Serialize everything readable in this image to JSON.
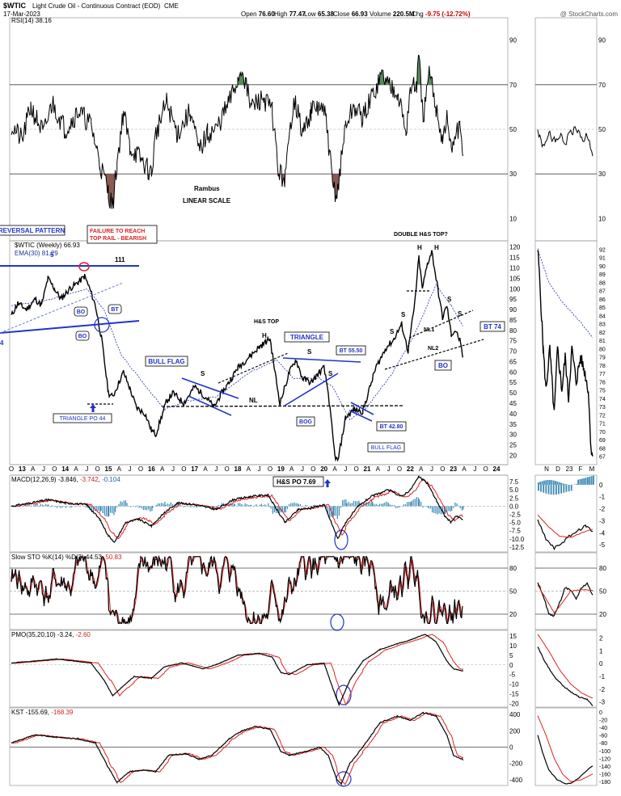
{
  "header": {
    "symbol": "$WTIC",
    "name": "Light Crude Oil - Continuous Contract (EOD)",
    "exchange": "CME",
    "date": "17-Mar-2023",
    "stats": [
      {
        "label": "Open",
        "value": "76.60"
      },
      {
        "label": "High",
        "value": "77.47"
      },
      {
        "label": "Low",
        "value": "65.38"
      },
      {
        "label": "Close",
        "value": "66.93"
      },
      {
        "label": "Volume",
        "value": "220.5M"
      },
      {
        "label": "Chg",
        "value": "-9.75 (-12.72%)"
      }
    ],
    "credit": "@ StockCharts.com"
  },
  "panels": {
    "rsi": {
      "label": "RSI(14) 38.16",
      "ticks": [
        "90",
        "70",
        "50",
        "30",
        "10"
      ],
      "levels": [
        30,
        50,
        70
      ]
    },
    "price": {
      "legend_main": "$WTIC (Weekly) 66.93",
      "legend_ema": "EMA(30) 81.29",
      "ticks": [
        "120",
        "115",
        "110",
        "105",
        "100",
        "95",
        "90",
        "85",
        "80",
        "75",
        "70",
        "65",
        "60",
        "55",
        "50",
        "45",
        "40",
        "35",
        "30",
        "25",
        "20"
      ],
      "right_ticks": [
        "92",
        "91",
        "90",
        "89",
        "88",
        "87",
        "86",
        "85",
        "84",
        "83",
        "82",
        "81",
        "80",
        "79",
        "78",
        "77",
        "76",
        "75",
        "74",
        "73",
        "72",
        "71",
        "70",
        "69",
        "68",
        "67"
      ]
    },
    "macd": {
      "label_prefix": "MACD(12,26,9)",
      "v1": "-3.846",
      "v2": "-3.742",
      "v3": "-0.104",
      "ticks": [
        "7.5",
        "5.0",
        "2.5",
        "0.0",
        "-2.5",
        "-5.0",
        "-7.5",
        "-10.0",
        "-12.5"
      ],
      "right_ticks": [
        "0",
        "-1",
        "-2",
        "-3",
        "-4",
        "-5"
      ]
    },
    "sto": {
      "label_prefix": "Slow STO %K(14) %D(3)",
      "v1": "44.53",
      "v2": "50.83",
      "ticks": [
        "80",
        "50",
        "20"
      ]
    },
    "pmo": {
      "label_prefix": "PMO(35,20,10)",
      "v1": "-3.24",
      "v2": "-2.60",
      "ticks": [
        "15",
        "10",
        "5",
        "0",
        "-5",
        "-10",
        "-15",
        "-20"
      ],
      "right_ticks": [
        "2",
        "1",
        "0",
        "-1",
        "-2",
        "-3"
      ]
    },
    "kst": {
      "label_prefix": "KST",
      "v1": "-155.69",
      "v2": "-168.39",
      "ticks": [
        "400",
        "200",
        "0",
        "-200",
        "-400"
      ],
      "right_ticks": [
        "0",
        "-20",
        "-40",
        "-60",
        "-80",
        "-100",
        "-120",
        "-140",
        "-160",
        "-180"
      ]
    }
  },
  "axis": {
    "main_labels": [
      "O",
      "13",
      "A",
      "J",
      "O",
      "14",
      "A",
      "J",
      "O",
      "15",
      "A",
      "J",
      "O",
      "16",
      "A",
      "J",
      "O",
      "17",
      "A",
      "J",
      "O",
      "18",
      "A",
      "J",
      "O",
      "19",
      "A",
      "J",
      "O",
      "20",
      "A",
      "J",
      "O",
      "21",
      "A",
      "J",
      "O",
      "22",
      "A",
      "J",
      "O",
      "23",
      "A",
      "J",
      "O",
      "24"
    ],
    "side_labels": [
      "N",
      "D",
      "23",
      "F",
      "M"
    ]
  },
  "annotations": {
    "reversal": "REVERSAL PATTERN",
    "failure1": "FAILURE TO REACH",
    "failure2": "TOP RAIL - BEARISH",
    "five": "5",
    "one11": "111",
    "four": "4",
    "bo1": "BO",
    "bo2": "BO",
    "bt": "BT",
    "triangle_po": "TRIANGLE PO 44",
    "bull_flag": "BULL FLAG",
    "s1": "S",
    "hs_top": "H&S TOP",
    "h1": "H",
    "s2": "S",
    "triangle": "TRIANGLE",
    "s3": "S",
    "bt5550": "BT 55.50",
    "nl": "NL",
    "bog": "BOG",
    "bt4280": "BT 42.80",
    "bull_flag2": "BULL FLAG",
    "double_hs": "DOUBLE H&S TOP?",
    "h2": "H",
    "h3": "H",
    "s4": "S",
    "s5": "S",
    "s6": "S",
    "s7": "S",
    "nl1": "NL1",
    "nl2": "NL2",
    "bt74": "BT 74",
    "bo3": "BO",
    "rambus": "Rambus",
    "linear": "LINEAR SCALE",
    "hs_po": "H&S PO 7.69"
  },
  "chart_data": {
    "type": "line",
    "title": "$WTIC Light Crude Oil - Continuous Contract (EOD)",
    "x_range": [
      "2012-10",
      "2024-01"
    ],
    "series": [
      {
        "name": "$WTIC (Weekly)",
        "x": [
          "2012-10",
          "2013-06",
          "2014-06",
          "2014-12",
          "2015-05",
          "2016-02",
          "2016-06",
          "2017-06",
          "2018-10",
          "2018-12",
          "2019-04",
          "2019-12",
          "2020-04",
          "2020-08",
          "2021-06",
          "2022-03",
          "2022-06",
          "2022-09",
          "2022-11",
          "2023-01",
          "2023-03"
        ],
        "values": [
          88,
          97,
          106,
          58,
          61,
          30,
          50,
          43,
          76,
          45,
          66,
          62,
          18,
          42,
          72,
          116,
          116,
          79,
          92,
          77,
          67
        ]
      },
      {
        "name": "EMA(30)",
        "x": [
          "2013-01",
          "2014-06",
          "2015-06",
          "2016-06",
          "2018-10",
          "2019-06",
          "2020-06",
          "2021-06",
          "2022-06",
          "2023-03"
        ],
        "values": [
          92,
          100,
          64,
          40,
          66,
          58,
          38,
          62,
          102,
          81
        ]
      }
    ],
    "ylim": [
      18,
      122
    ],
    "rsi_levels": [
      30,
      50,
      70
    ],
    "rsi_last": 38.16,
    "macd_last": [
      -3.846,
      -3.742,
      -0.104
    ],
    "sto_last": [
      44.53,
      50.83
    ],
    "pmo_last": [
      -3.24,
      -2.6
    ],
    "kst_last": [
      -155.69,
      -168.39
    ],
    "hs_price_objective": 7.69,
    "triangle_price_objective": 44
  }
}
